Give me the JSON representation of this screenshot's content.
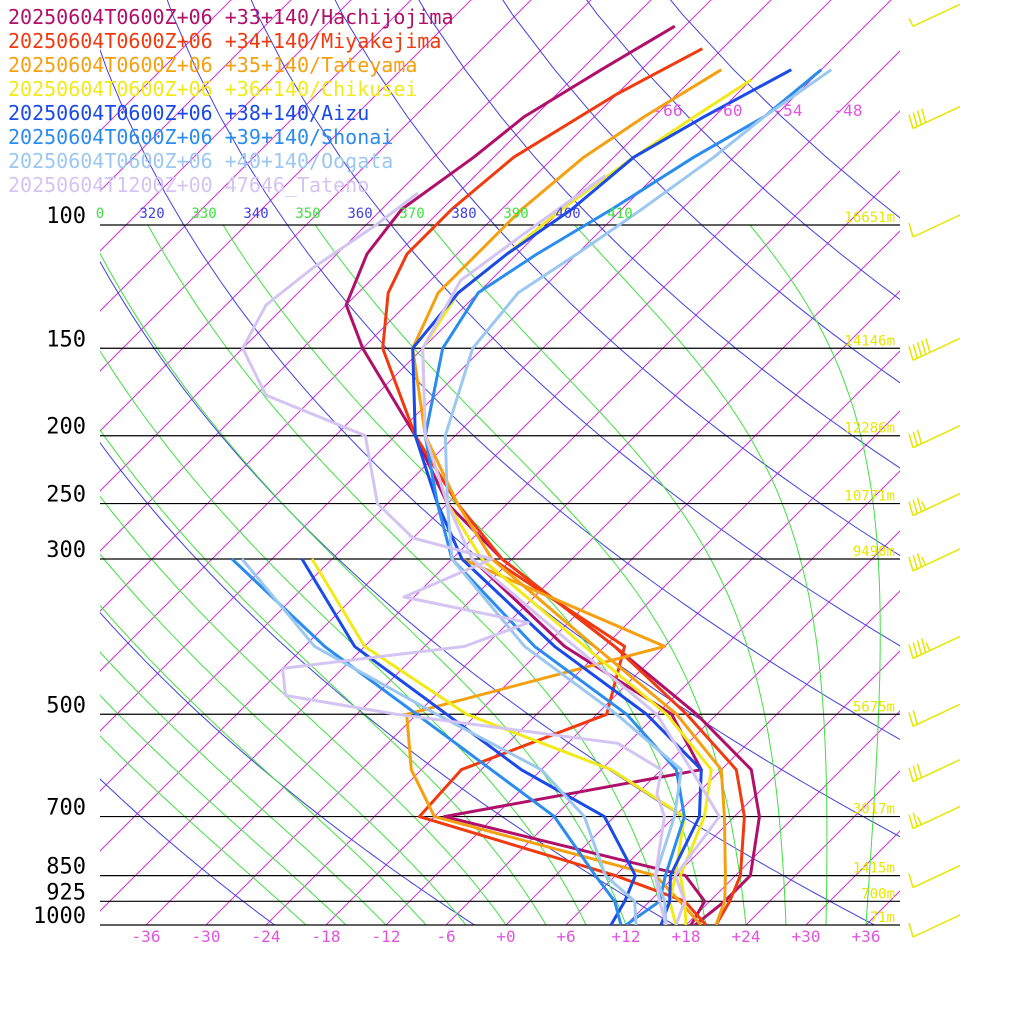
{
  "legend": [
    {
      "text": "20250604T0600Z+06 +33+140/Hachijojima",
      "color": "#b0106a"
    },
    {
      "text": "20250604T0600Z+06 +34+140/Miyakejima",
      "color": "#f03a10"
    },
    {
      "text": "20250604T0600Z+06 +35+140/Tateyama",
      "color": "#f5a010"
    },
    {
      "text": "20250604T0600Z+06 +36+140/Chikusei",
      "color": "#f2ea18"
    },
    {
      "text": "20250604T0600Z+06 +38+140/Aizu",
      "color": "#1a4ae8"
    },
    {
      "text": "20250604T0600Z+06 +39+140/Shonai",
      "color": "#2a8cec"
    },
    {
      "text": "20250604T0600Z+06 +40+140/Oogata",
      "color": "#9cc8f0"
    },
    {
      "text": "20250604T1200Z+00 47646_Tateno",
      "color": "#d4c4f2"
    }
  ],
  "colors": {
    "isobar": "#000000",
    "isotherm": "#d030d0",
    "dry_adiabat": "#4040e0",
    "moist_adiabat": "#40e040",
    "temp_label": "#e055e0",
    "height_label": "#e6e600",
    "wind_barb": "#e6e600"
  },
  "chart_data": {
    "type": "line",
    "title": "",
    "xlabel": "",
    "ylabel": "",
    "pressure_levels": [
      {
        "p": 1000,
        "label": "1000",
        "height": "71m"
      },
      {
        "p": 925,
        "label": "925",
        "height": "700m"
      },
      {
        "p": 850,
        "label": "850",
        "height": "1415m"
      },
      {
        "p": 700,
        "label": "700",
        "height": "3017m"
      },
      {
        "p": 500,
        "label": "500",
        "height": "5675m"
      },
      {
        "p": 300,
        "label": "300",
        "height": "9490m"
      },
      {
        "p": 250,
        "label": "250",
        "height": "10771m"
      },
      {
        "p": 200,
        "label": "200",
        "height": "12286m"
      },
      {
        "p": 150,
        "label": "150",
        "height": "14146m"
      },
      {
        "p": 100,
        "label": "100",
        "height": "16651m"
      }
    ],
    "x_ticks": [
      {
        "t": -36,
        "label": "-36"
      },
      {
        "t": -30,
        "label": "-30"
      },
      {
        "t": -24,
        "label": "-24"
      },
      {
        "t": -18,
        "label": "-18"
      },
      {
        "t": -12,
        "label": "-12"
      },
      {
        "t": -6,
        "label": "-6"
      },
      {
        "t": 0,
        "label": "+0"
      },
      {
        "t": 6,
        "label": "+6"
      },
      {
        "t": 12,
        "label": "+12"
      },
      {
        "t": 18,
        "label": "+18"
      },
      {
        "t": 24,
        "label": "+24"
      },
      {
        "t": 30,
        "label": "+30"
      },
      {
        "t": 36,
        "label": "+36"
      }
    ],
    "upper_temp_labels": [
      "-66",
      "-60",
      "-54",
      "-48"
    ],
    "theta_labels": [
      {
        "label": "0",
        "color": "#40e040"
      },
      {
        "label": "320",
        "color": "#4040e0"
      },
      {
        "label": "330",
        "color": "#40e040"
      },
      {
        "label": "340",
        "color": "#4040e0"
      },
      {
        "label": "350",
        "color": "#40e040"
      },
      {
        "label": "360",
        "color": "#4040e0"
      },
      {
        "label": "370",
        "color": "#40e040"
      },
      {
        "label": "380",
        "color": "#4040e0"
      },
      {
        "label": "390",
        "color": "#40e040"
      },
      {
        "label": "400",
        "color": "#4040e0"
      },
      {
        "label": "410",
        "color": "#40e040"
      }
    ],
    "series": [
      {
        "name": "20250604T0600Z+06 +33+140/Hachijojima",
        "color": "#b0106a",
        "temperature": [
          [
            1000,
            18.9
          ],
          [
            925,
            19.5
          ],
          [
            850,
            19.5
          ],
          [
            700,
            14.5
          ],
          [
            600,
            9
          ],
          [
            500,
            -2
          ],
          [
            400,
            -17
          ],
          [
            300,
            -37
          ],
          [
            250,
            -48
          ],
          [
            200,
            -58
          ],
          [
            150,
            -72
          ],
          [
            130,
            -78
          ],
          [
            110,
            -81
          ],
          [
            95,
            -82
          ],
          [
            80,
            -80
          ],
          [
            70,
            -79
          ],
          [
            60,
            -76
          ],
          [
            52,
            -73
          ]
        ],
        "dewpoint": [
          [
            1000,
            18.5
          ],
          [
            925,
            17.5
          ],
          [
            850,
            13
          ],
          [
            700,
            -17
          ],
          [
            600,
            4
          ],
          [
            500,
            -4.5
          ],
          [
            400,
            -22
          ],
          [
            300,
            -40
          ]
        ]
      },
      {
        "name": "20250604T0600Z+06 +34+140/Miyakejima",
        "color": "#f03a10",
        "temperature": [
          [
            1000,
            21
          ],
          [
            925,
            20
          ],
          [
            850,
            18.5
          ],
          [
            700,
            13
          ],
          [
            600,
            7.5
          ],
          [
            500,
            -3
          ],
          [
            400,
            -17
          ],
          [
            300,
            -37
          ],
          [
            250,
            -47
          ],
          [
            200,
            -58
          ],
          [
            150,
            -70
          ],
          [
            125,
            -75
          ],
          [
            110,
            -77
          ],
          [
            95,
            -77
          ],
          [
            80,
            -76
          ],
          [
            65,
            -72
          ],
          [
            56,
            -68
          ]
        ],
        "dewpoint": [
          [
            1000,
            20
          ],
          [
            925,
            15.5
          ],
          [
            850,
            6
          ],
          [
            700,
            -19.5
          ],
          [
            600,
            -20
          ],
          [
            500,
            -11
          ],
          [
            400,
            -16
          ],
          [
            300,
            -38
          ]
        ]
      },
      {
        "name": "20250604T0600Z+06 +35+140/Tateyama",
        "color": "#f5a010",
        "temperature": [
          [
            1000,
            21
          ],
          [
            925,
            19.5
          ],
          [
            850,
            17
          ],
          [
            700,
            11
          ],
          [
            600,
            6
          ],
          [
            500,
            -4
          ],
          [
            400,
            -19
          ],
          [
            300,
            -38
          ],
          [
            250,
            -47
          ],
          [
            200,
            -57
          ],
          [
            150,
            -67
          ],
          [
            125,
            -70
          ],
          [
            110,
            -70
          ],
          [
            95,
            -70
          ],
          [
            80,
            -69
          ],
          [
            70,
            -67
          ],
          [
            60,
            -64
          ]
        ],
        "dewpoint": [
          [
            1000,
            19.5
          ],
          [
            925,
            15
          ],
          [
            850,
            10
          ],
          [
            700,
            -18
          ],
          [
            600,
            -25
          ],
          [
            500,
            -31
          ],
          [
            400,
            -12
          ],
          [
            300,
            -41
          ]
        ]
      },
      {
        "name": "20250604T0600Z+06 +36+140/Chikusei",
        "color": "#f2ea18",
        "temperature": [
          [
            1000,
            18
          ],
          [
            925,
            15.5
          ],
          [
            850,
            12.5
          ],
          [
            700,
            9
          ],
          [
            600,
            5
          ],
          [
            500,
            -5
          ],
          [
            400,
            -20
          ],
          [
            300,
            -39
          ],
          [
            250,
            -48
          ],
          [
            200,
            -57
          ],
          [
            150,
            -66
          ],
          [
            125,
            -68
          ],
          [
            110,
            -67
          ],
          [
            95,
            -66
          ],
          [
            80,
            -64
          ],
          [
            70,
            -62
          ],
          [
            62,
            -60
          ]
        ],
        "dewpoint": [
          [
            1000,
            17
          ],
          [
            925,
            14
          ],
          [
            850,
            12
          ],
          [
            700,
            7
          ],
          [
            600,
            -5
          ],
          [
            500,
            -25
          ],
          [
            400,
            -42
          ],
          [
            300,
            -56
          ]
        ]
      },
      {
        "name": "20250604T0600Z+06 +38+140/Aizu",
        "color": "#1a4ae8",
        "temperature": [
          [
            1000,
            15.5
          ],
          [
            925,
            14
          ],
          [
            850,
            11.5
          ],
          [
            700,
            8.5
          ],
          [
            600,
            4
          ],
          [
            500,
            -7
          ],
          [
            400,
            -23
          ],
          [
            300,
            -41
          ],
          [
            250,
            -49
          ],
          [
            200,
            -58
          ],
          [
            150,
            -67
          ],
          [
            125,
            -68
          ],
          [
            110,
            -67
          ],
          [
            95,
            -65
          ],
          [
            80,
            -64
          ],
          [
            70,
            -61
          ],
          [
            60,
            -57
          ]
        ],
        "dewpoint": [
          [
            1000,
            10.5
          ],
          [
            925,
            9.5
          ],
          [
            850,
            8
          ],
          [
            700,
            -1
          ],
          [
            600,
            -14
          ],
          [
            500,
            -27
          ],
          [
            400,
            -43
          ],
          [
            300,
            -57
          ]
        ]
      },
      {
        "name": "20250604T0600Z+06 +39+140/Shonai",
        "color": "#2a8cec",
        "temperature": [
          [
            1000,
            12
          ],
          [
            925,
            13
          ],
          [
            850,
            11
          ],
          [
            700,
            7
          ],
          [
            600,
            1.5
          ],
          [
            500,
            -9
          ],
          [
            400,
            -25
          ],
          [
            300,
            -42
          ],
          [
            250,
            -49
          ],
          [
            200,
            -57
          ],
          [
            150,
            -64
          ],
          [
            125,
            -66
          ],
          [
            110,
            -64
          ],
          [
            95,
            -61
          ],
          [
            80,
            -58
          ],
          [
            70,
            -55
          ],
          [
            60,
            -54
          ]
        ],
        "dewpoint": [
          [
            1000,
            11.5
          ],
          [
            925,
            8.5
          ],
          [
            850,
            4
          ],
          [
            700,
            -6
          ],
          [
            600,
            -17
          ],
          [
            500,
            -30
          ],
          [
            400,
            -46
          ],
          [
            300,
            -64
          ]
        ]
      },
      {
        "name": "20250604T0600Z+06 +40+140/Oogata",
        "color": "#9cc8f0",
        "temperature": [
          [
            1000,
            16
          ],
          [
            925,
            13.5
          ],
          [
            850,
            10
          ],
          [
            700,
            6
          ],
          [
            600,
            2
          ],
          [
            500,
            -10
          ],
          [
            400,
            -26
          ],
          [
            300,
            -42
          ],
          [
            250,
            -48
          ],
          [
            200,
            -55
          ],
          [
            150,
            -61
          ],
          [
            125,
            -62
          ],
          [
            110,
            -60
          ],
          [
            95,
            -58
          ],
          [
            80,
            -56
          ],
          [
            70,
            -55
          ],
          [
            60,
            -53
          ]
        ],
        "dewpoint": [
          [
            1000,
            13
          ],
          [
            925,
            10.5
          ],
          [
            850,
            5
          ],
          [
            700,
            -3
          ],
          [
            600,
            -12
          ],
          [
            500,
            -28
          ],
          [
            400,
            -47
          ],
          [
            300,
            -63
          ]
        ]
      },
      {
        "name": "20250604T1200Z+00 47646_Tateno",
        "color": "#d4c4f2",
        "temperature": [
          [
            1000,
            17
          ],
          [
            925,
            15.5
          ],
          [
            850,
            12
          ],
          [
            700,
            10.5
          ],
          [
            600,
            3
          ],
          [
            500,
            -6
          ],
          [
            400,
            -21
          ],
          [
            300,
            -40
          ],
          [
            250,
            -48
          ],
          [
            200,
            -57
          ],
          [
            150,
            -66
          ],
          [
            120,
            -69
          ],
          [
            100,
            -67
          ],
          [
            85,
            -65
          ]
        ],
        "dewpoint": [
          [
            1000,
            16
          ],
          [
            925,
            13
          ],
          [
            850,
            10
          ],
          [
            700,
            5
          ],
          [
            650,
            2
          ],
          [
            600,
            0
          ],
          [
            550,
            -7
          ],
          [
            500,
            -32
          ],
          [
            470,
            -45
          ],
          [
            430,
            -48
          ],
          [
            400,
            -32
          ],
          [
            370,
            -28
          ],
          [
            340,
            -43
          ],
          [
            300,
            -38
          ],
          [
            280,
            -48
          ],
          [
            250,
            -55
          ],
          [
            200,
            -63
          ],
          [
            175,
            -77
          ],
          [
            150,
            -84
          ],
          [
            130,
            -86
          ],
          [
            115,
            -85
          ],
          [
            100,
            -83
          ],
          [
            90,
            -82
          ]
        ]
      }
    ],
    "wind_barbs": [
      {
        "p": 1000,
        "speed_kt": 10
      },
      {
        "p": 850,
        "speed_kt": 10
      },
      {
        "p": 700,
        "speed_kt": 25
      },
      {
        "p": 600,
        "speed_kt": 30
      },
      {
        "p": 500,
        "speed_kt": 20
      },
      {
        "p": 400,
        "speed_kt": 45
      },
      {
        "p": 300,
        "speed_kt": 35
      },
      {
        "p": 250,
        "speed_kt": 35
      },
      {
        "p": 200,
        "speed_kt": 30
      },
      {
        "p": 150,
        "speed_kt": 50
      },
      {
        "p": 100,
        "speed_kt": 10
      },
      {
        "p": 70,
        "speed_kt": 40
      },
      {
        "p": 50,
        "speed_kt": 5
      }
    ]
  }
}
